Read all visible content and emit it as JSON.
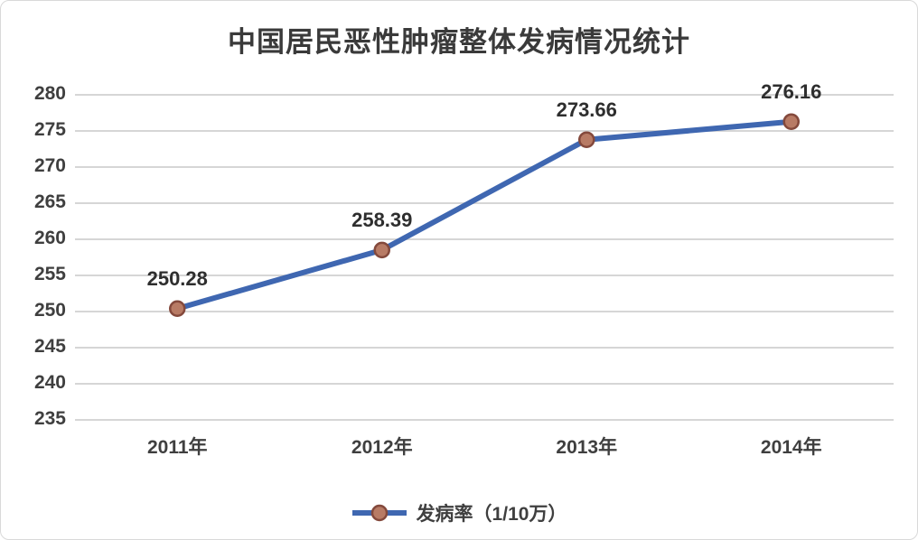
{
  "chart_data": {
    "type": "line",
    "title": "中国居民恶性肿瘤整体发病情况统计",
    "categories": [
      "2011年",
      "2012年",
      "2013年",
      "2014年"
    ],
    "series": [
      {
        "name": "发病率（1/10万）",
        "values": [
          250.28,
          258.39,
          273.66,
          276.16
        ],
        "value_labels": [
          "250.28",
          "258.39",
          "273.66",
          "276.16"
        ]
      }
    ],
    "ylim": [
      235,
      280
    ],
    "ytick_step": 5,
    "yticks": [
      280,
      275,
      270,
      265,
      260,
      255,
      250,
      245,
      240,
      235
    ],
    "grid": "horizontal",
    "legend_position": "bottom-center",
    "xlabel": "",
    "ylabel": ""
  },
  "colors": {
    "line": "#3f67b1",
    "marker_fill": "#b87b65",
    "marker_stroke": "#84493c",
    "grid": "#d6d6d6",
    "text": "#3f3f3f",
    "title_text": "#3a3a3a",
    "card_border": "#d9d9d9",
    "background": "#ffffff"
  },
  "legend": {
    "label": "发病率（1/10万）",
    "swatch_icon": "line-with-marker-icon"
  }
}
